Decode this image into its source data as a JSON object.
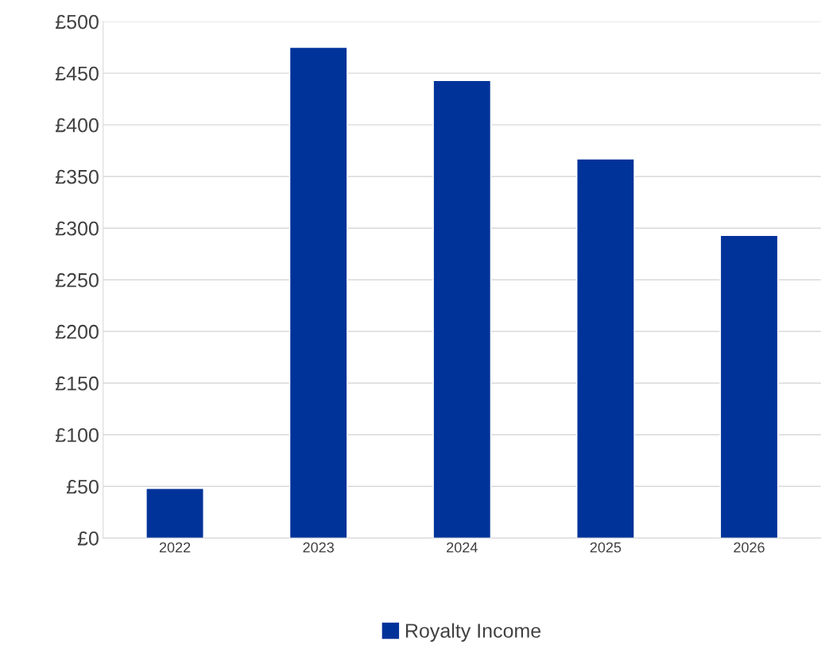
{
  "chart_data": {
    "type": "bar",
    "categories": [
      "2022",
      "2023",
      "2024",
      "2025",
      "2026"
    ],
    "series": [
      {
        "name": "Royalty Income",
        "color": "#003399",
        "values": [
          48,
          475,
          443,
          367,
          293
        ]
      }
    ],
    "ylim": [
      0,
      500
    ],
    "yticks": [
      {
        "value": 0,
        "label": "£0"
      },
      {
        "value": 50,
        "label": "£50"
      },
      {
        "value": 100,
        "label": "£100"
      },
      {
        "value": 150,
        "label": "£150"
      },
      {
        "value": 200,
        "label": "£200"
      },
      {
        "value": 250,
        "label": "£250"
      },
      {
        "value": 300,
        "label": "£300"
      },
      {
        "value": 350,
        "label": "£350"
      },
      {
        "value": 400,
        "label": "£400"
      },
      {
        "value": 450,
        "label": "£450"
      },
      {
        "value": 500,
        "label": "£500"
      }
    ],
    "grid": "y",
    "legend": "bottom"
  }
}
